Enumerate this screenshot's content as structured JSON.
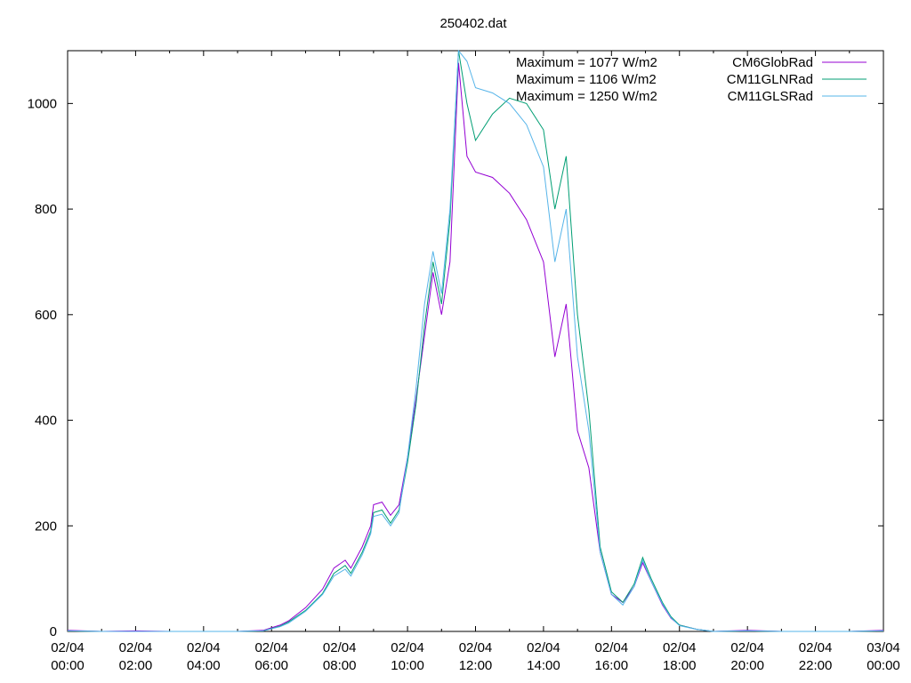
{
  "chart_data": {
    "type": "line",
    "title": "250402.dat",
    "xlabel": "",
    "ylabel": "",
    "ylim": [
      0,
      1100
    ],
    "xlim_hours": [
      0,
      24
    ],
    "grid": false,
    "legend_position": "top-right",
    "y_ticks": [
      "0",
      "200",
      "400",
      "600",
      "800",
      "1000"
    ],
    "x_ticks": [
      {
        "date": "02/04",
        "time": "00:00"
      },
      {
        "date": "02/04",
        "time": "02:00"
      },
      {
        "date": "02/04",
        "time": "04:00"
      },
      {
        "date": "02/04",
        "time": "06:00"
      },
      {
        "date": "02/04",
        "time": "08:00"
      },
      {
        "date": "02/04",
        "time": "10:00"
      },
      {
        "date": "02/04",
        "time": "12:00"
      },
      {
        "date": "02/04",
        "time": "14:00"
      },
      {
        "date": "02/04",
        "time": "16:00"
      },
      {
        "date": "02/04",
        "time": "18:00"
      },
      {
        "date": "02/04",
        "time": "20:00"
      },
      {
        "date": "02/04",
        "time": "22:00"
      },
      {
        "date": "03/04",
        "time": "00:00"
      }
    ],
    "annotations": [
      "Maximum = 1077 W/m2",
      "Maximum = 1106 W/m2",
      "Maximum = 1250 W/m2"
    ],
    "series": [
      {
        "name": "CM6GlobRad",
        "color": "#9400d3",
        "x": [
          "02/04 00:00",
          "02/04 01:00",
          "02/04 02:00",
          "02/04 03:00",
          "02/04 04:00",
          "02/04 05:00",
          "02/04 05:45",
          "02/04 06:15",
          "02/04 06:30",
          "02/04 07:00",
          "02/04 07:30",
          "02/04 07:50",
          "02/04 08:10",
          "02/04 08:20",
          "02/04 08:40",
          "02/04 08:55",
          "02/04 09:00",
          "02/04 09:15",
          "02/04 09:30",
          "02/04 09:45",
          "02/04 10:00",
          "02/04 10:15",
          "02/04 10:30",
          "02/04 10:45",
          "02/04 11:00",
          "02/04 11:15",
          "02/04 11:30",
          "02/04 11:45",
          "02/04 12:00",
          "02/04 12:30",
          "02/04 13:00",
          "02/04 13:30",
          "02/04 14:00",
          "02/04 14:20",
          "02/04 14:40",
          "02/04 15:00",
          "02/04 15:20",
          "02/04 15:40",
          "02/04 16:00",
          "02/04 16:20",
          "02/04 16:40",
          "02/04 16:55",
          "02/04 17:10",
          "02/04 17:30",
          "02/04 17:45",
          "02/04 18:00",
          "02/04 18:30",
          "02/04 19:00",
          "02/04 20:00",
          "02/04 21:00",
          "02/04 22:00",
          "02/04 23:00",
          "03/04 00:00"
        ],
        "values": [
          2,
          0,
          1,
          0,
          0,
          0,
          2,
          12,
          20,
          45,
          80,
          120,
          135,
          120,
          160,
          200,
          240,
          245,
          220,
          240,
          330,
          440,
          560,
          680,
          600,
          700,
          1077,
          900,
          870,
          860,
          830,
          780,
          700,
          520,
          620,
          380,
          310,
          150,
          70,
          55,
          85,
          130,
          95,
          50,
          25,
          12,
          4,
          0,
          2,
          0,
          0,
          0,
          2
        ]
      },
      {
        "name": "CM11GLNRad",
        "color": "#009e73",
        "x": [
          "02/04 00:00",
          "02/04 01:00",
          "02/04 02:00",
          "02/04 03:00",
          "02/04 04:00",
          "02/04 05:00",
          "02/04 05:45",
          "02/04 06:15",
          "02/04 06:30",
          "02/04 07:00",
          "02/04 07:30",
          "02/04 07:50",
          "02/04 08:10",
          "02/04 08:20",
          "02/04 08:40",
          "02/04 08:55",
          "02/04 09:00",
          "02/04 09:15",
          "02/04 09:30",
          "02/04 09:45",
          "02/04 10:00",
          "02/04 10:15",
          "02/04 10:30",
          "02/04 10:45",
          "02/04 11:00",
          "02/04 11:15",
          "02/04 11:30",
          "02/04 11:45",
          "02/04 12:00",
          "02/04 12:30",
          "02/04 13:00",
          "02/04 13:30",
          "02/04 14:00",
          "02/04 14:20",
          "02/04 14:40",
          "02/04 15:00",
          "02/04 15:20",
          "02/04 15:40",
          "02/04 16:00",
          "02/04 16:20",
          "02/04 16:40",
          "02/04 16:55",
          "02/04 17:10",
          "02/04 17:30",
          "02/04 17:45",
          "02/04 18:00",
          "02/04 18:30",
          "02/04 19:00",
          "02/04 20:00",
          "02/04 21:00",
          "02/04 22:00",
          "02/04 23:00",
          "03/04 00:00"
        ],
        "values": [
          1,
          0,
          0,
          0,
          0,
          0,
          1,
          10,
          18,
          40,
          72,
          110,
          125,
          110,
          150,
          190,
          225,
          230,
          205,
          230,
          320,
          430,
          580,
          700,
          620,
          780,
          1106,
          1000,
          930,
          980,
          1010,
          1000,
          950,
          800,
          900,
          600,
          420,
          160,
          75,
          55,
          90,
          140,
          100,
          55,
          28,
          12,
          4,
          0,
          1,
          0,
          0,
          0,
          1
        ]
      },
      {
        "name": "CM11GLSRad",
        "color": "#56b4e9",
        "x": [
          "02/04 00:00",
          "02/04 01:00",
          "02/04 02:00",
          "02/04 03:00",
          "02/04 04:00",
          "02/04 05:00",
          "02/04 05:45",
          "02/04 06:15",
          "02/04 06:30",
          "02/04 07:00",
          "02/04 07:30",
          "02/04 07:50",
          "02/04 08:10",
          "02/04 08:20",
          "02/04 08:40",
          "02/04 08:55",
          "02/04 09:00",
          "02/04 09:15",
          "02/04 09:30",
          "02/04 09:45",
          "02/04 10:00",
          "02/04 10:15",
          "02/04 10:30",
          "02/04 10:45",
          "02/04 11:00",
          "02/04 11:15",
          "02/04 11:30",
          "02/04 11:45",
          "02/04 12:00",
          "02/04 12:30",
          "02/04 13:00",
          "02/04 13:30",
          "02/04 14:00",
          "02/04 14:20",
          "02/04 14:40",
          "02/04 15:00",
          "02/04 15:20",
          "02/04 15:40",
          "02/04 16:00",
          "02/04 16:20",
          "02/04 16:40",
          "02/04 16:55",
          "02/04 17:10",
          "02/04 17:30",
          "02/04 17:45",
          "02/04 18:00",
          "02/04 18:30",
          "02/04 19:00",
          "02/04 20:00",
          "02/04 21:00",
          "02/04 22:00",
          "02/04 23:00",
          "03/04 00:00"
        ],
        "values": [
          1,
          0,
          0,
          0,
          0,
          0,
          1,
          9,
          16,
          38,
          70,
          105,
          118,
          105,
          145,
          185,
          218,
          222,
          200,
          225,
          330,
          460,
          620,
          720,
          640,
          800,
          1250,
          1080,
          1030,
          1020,
          1000,
          960,
          880,
          700,
          800,
          520,
          380,
          150,
          70,
          50,
          85,
          135,
          95,
          52,
          26,
          11,
          4,
          0,
          1,
          0,
          0,
          0,
          1
        ]
      }
    ]
  }
}
